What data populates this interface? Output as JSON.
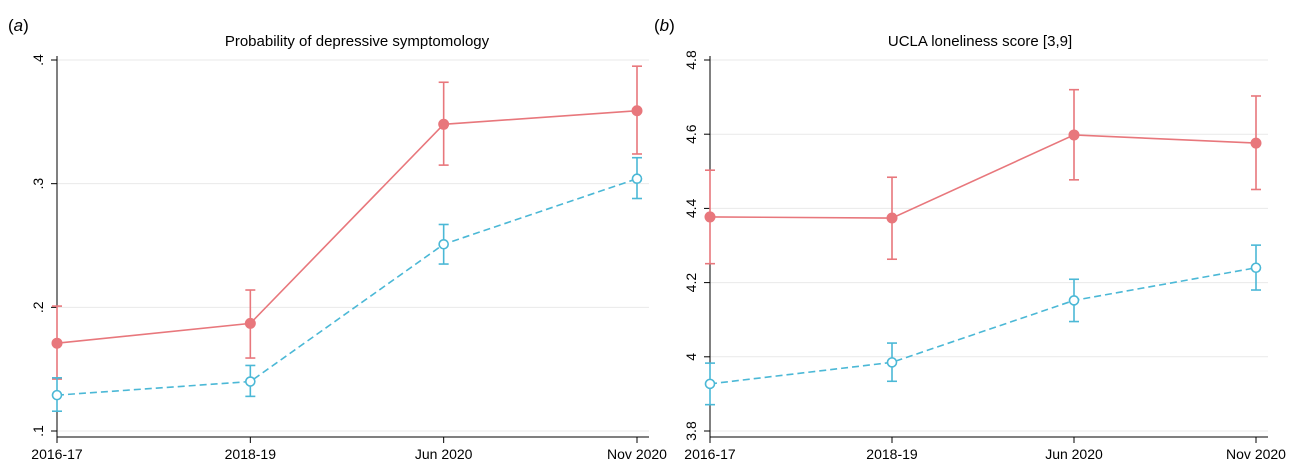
{
  "chart_data": [
    {
      "panel_label": "a",
      "type": "line",
      "title": "Probability of depressive symptomology",
      "categories": [
        "2016-17",
        "2018-19",
        "Jun 2020",
        "Nov 2020"
      ],
      "ylim": [
        0.1,
        0.4
      ],
      "yticks": [
        ".1",
        ".2",
        ".3",
        ".4"
      ],
      "ytick_values": [
        0.1,
        0.2,
        0.3,
        0.4
      ],
      "grid": true,
      "series": [
        {
          "color": "#e8777c",
          "style": "solid",
          "marker": "filled-circle",
          "values": [
            0.171,
            0.187,
            0.348,
            0.359
          ],
          "ci_low": [
            0.142,
            0.159,
            0.315,
            0.324
          ],
          "ci_high": [
            0.201,
            0.214,
            0.382,
            0.395
          ]
        },
        {
          "color": "#4bb8d6",
          "style": "dashed",
          "marker": "hollow-circle",
          "values": [
            0.129,
            0.14,
            0.251,
            0.304
          ],
          "ci_low": [
            0.116,
            0.128,
            0.235,
            0.288
          ],
          "ci_high": [
            0.143,
            0.153,
            0.267,
            0.321
          ]
        }
      ]
    },
    {
      "panel_label": "b",
      "type": "line",
      "title": "UCLA loneliness score [3,9]",
      "categories": [
        "2016-17",
        "2018-19",
        "Jun 2020",
        "Nov 2020"
      ],
      "ylim": [
        3.8,
        4.8
      ],
      "yticks": [
        "3.8",
        "4",
        "4.2",
        "4.4",
        "4.6",
        "4.8"
      ],
      "ytick_values": [
        3.8,
        4.0,
        4.2,
        4.4,
        4.6,
        4.8
      ],
      "grid": true,
      "series": [
        {
          "color": "#e8777c",
          "style": "solid",
          "marker": "filled-circle",
          "values": [
            4.377,
            4.374,
            4.598,
            4.576
          ],
          "ci_low": [
            4.251,
            4.263,
            4.477,
            4.451
          ],
          "ci_high": [
            4.503,
            4.484,
            4.72,
            4.703
          ]
        },
        {
          "color": "#4bb8d6",
          "style": "dashed",
          "marker": "hollow-circle",
          "values": [
            3.927,
            3.985,
            4.152,
            4.24
          ],
          "ci_low": [
            3.871,
            3.934,
            4.095,
            4.18
          ],
          "ci_high": [
            3.983,
            4.037,
            4.209,
            4.301
          ]
        }
      ]
    }
  ]
}
